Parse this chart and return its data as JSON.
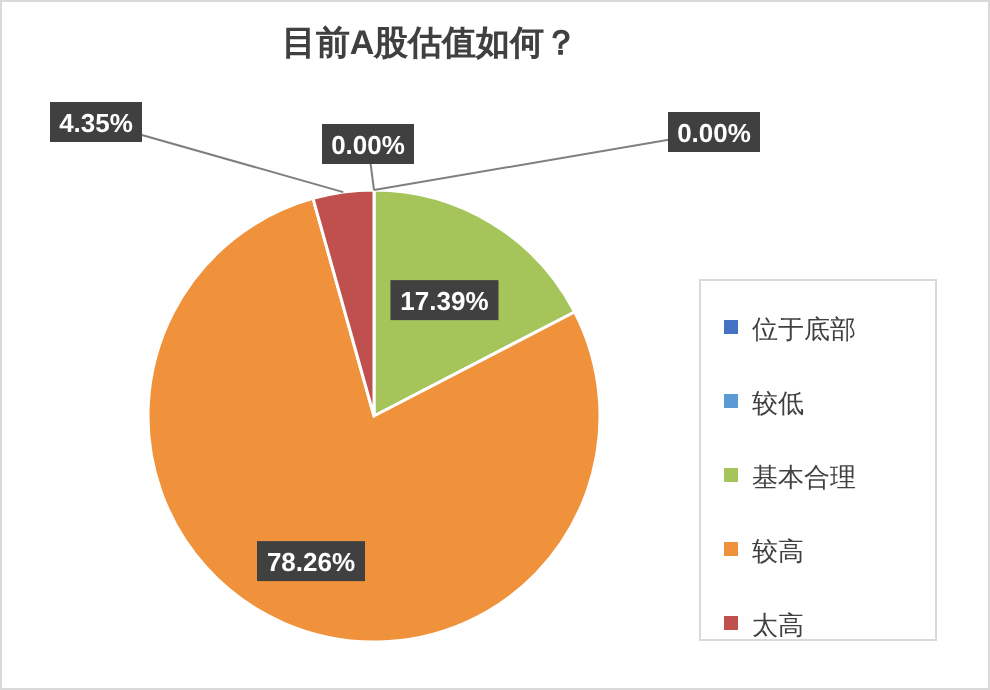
{
  "chart_data": {
    "type": "pie",
    "title": "目前A股估值如何？",
    "categories": [
      "位于底部",
      "较低",
      "基本合理",
      "较高",
      "太高"
    ],
    "values": [
      0.0,
      0.0,
      17.39,
      78.26,
      4.35
    ],
    "value_labels": [
      "0.00%",
      "0.00%",
      "17.39%",
      "78.26%",
      "4.35%"
    ],
    "colors": [
      "#4472c4",
      "#5b9bd5",
      "#a5c45a",
      "#f0923b",
      "#c0504d"
    ],
    "legend": "right"
  }
}
